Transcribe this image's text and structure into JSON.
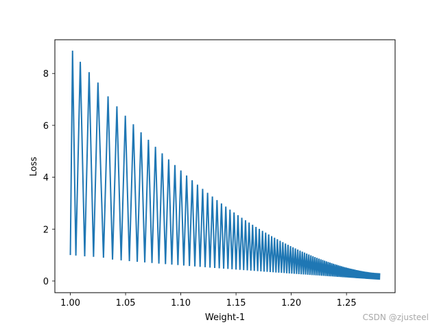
{
  "chart_data": {
    "type": "line",
    "xlabel": "Weight-1",
    "ylabel": "Loss",
    "xlim": [
      0.986,
      1.294
    ],
    "ylim": [
      -0.45,
      9.3
    ],
    "xticks": [
      1.0,
      1.05,
      1.1,
      1.15,
      1.2,
      1.25
    ],
    "xtick_labels": [
      "1.00",
      "1.05",
      "1.10",
      "1.15",
      "1.20",
      "1.25"
    ],
    "yticks": [
      0,
      2,
      4,
      6,
      8
    ],
    "ytick_labels": [
      "0",
      "2",
      "4",
      "6",
      "8"
    ],
    "grid": false,
    "series": [
      {
        "color": "#1f77b4",
        "x": [
          1.0,
          1.002,
          1.005,
          1.009,
          1.013,
          1.017,
          1.021,
          1.025,
          1.03
        ],
        "y": [
          1.0,
          8.88,
          0.98,
          8.45,
          0.95,
          8.05,
          0.93,
          7.65,
          0.9
        ]
      }
    ]
  },
  "watermark": "CSDN @zjusteel"
}
